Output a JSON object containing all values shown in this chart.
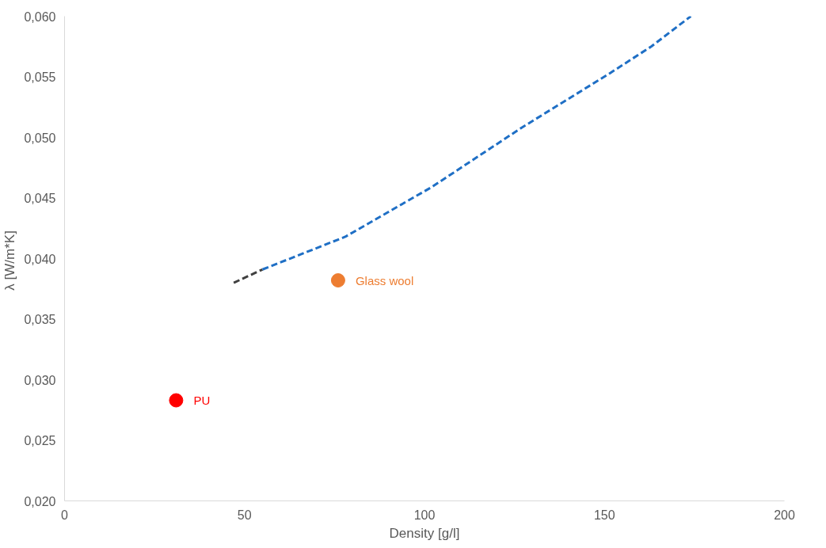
{
  "chart_data": {
    "type": "line",
    "xlabel": "Density [g/l]",
    "ylabel": "λ  [W/m*K]",
    "xlim": [
      0,
      200
    ],
    "ylim": [
      0.02,
      0.06
    ],
    "xticks": [
      0,
      50,
      100,
      150,
      200
    ],
    "yticks": [
      {
        "value": 0.02,
        "label": "0,020"
      },
      {
        "value": 0.025,
        "label": "0,025"
      },
      {
        "value": 0.03,
        "label": "0,030"
      },
      {
        "value": 0.035,
        "label": "0,035"
      },
      {
        "value": 0.04,
        "label": "0,040"
      },
      {
        "value": 0.045,
        "label": "0,045"
      },
      {
        "value": 0.05,
        "label": "0,050"
      },
      {
        "value": 0.055,
        "label": "0,055"
      },
      {
        "value": 0.06,
        "label": "0,060"
      }
    ],
    "grid": false,
    "line_style": "dashed",
    "series": [
      {
        "type": "line",
        "color": "#404040",
        "x": [
          47,
          55
        ],
        "values": [
          0.038,
          0.0391
        ]
      },
      {
        "type": "line",
        "color": "#1f6fc5",
        "x": [
          55,
          78,
          102,
          127,
          151,
          163,
          174
        ],
        "values": [
          0.0391,
          0.0418,
          0.0459,
          0.0508,
          0.0552,
          0.0575,
          0.06
        ]
      },
      {
        "type": "scatter",
        "name": "PU",
        "color": "#ff0000",
        "marker": "circle",
        "x": [
          31
        ],
        "values": [
          0.0283
        ]
      },
      {
        "type": "scatter",
        "name": "Glass wool",
        "color": "#ed7d31",
        "marker": "circle",
        "x": [
          76
        ],
        "values": [
          0.0382
        ]
      }
    ]
  }
}
